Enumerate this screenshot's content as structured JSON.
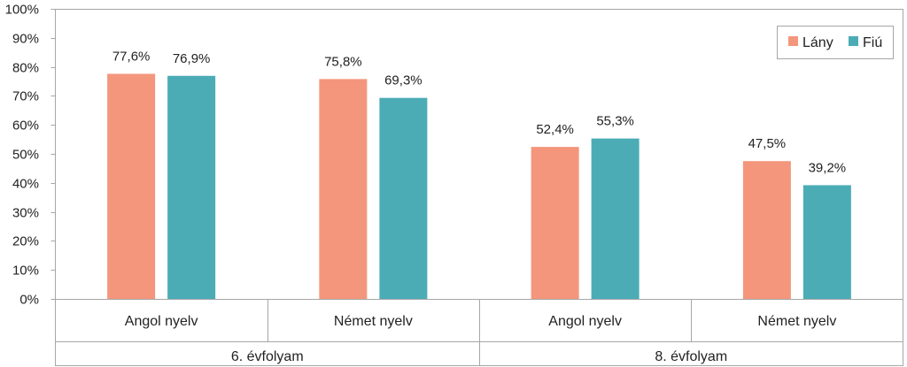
{
  "chart_data": {
    "type": "bar",
    "groups": [
      {
        "label": "6. évfolyam",
        "categories": [
          "Angol nyelv",
          "Német nyelv"
        ]
      },
      {
        "label": "8. évfolyam",
        "categories": [
          "Angol nyelv",
          "Német nyelv"
        ]
      }
    ],
    "categories": [
      "Angol nyelv",
      "Német nyelv",
      "Angol nyelv",
      "Német nyelv"
    ],
    "series": [
      {
        "name": "Lány",
        "color": "#f4967c",
        "values": [
          77.6,
          75.8,
          52.4,
          47.5
        ],
        "labels": [
          "77,6%",
          "75,8%",
          "52,4%",
          "47,5%"
        ]
      },
      {
        "name": "Fiú",
        "color": "#4bacb6",
        "values": [
          76.9,
          69.3,
          55.3,
          39.2
        ],
        "labels": [
          "76,9%",
          "69,3%",
          "55,3%",
          "39,2%"
        ]
      }
    ],
    "yticks": [
      "0%",
      "10%",
      "20%",
      "30%",
      "40%",
      "50%",
      "60%",
      "70%",
      "80%",
      "90%",
      "100%"
    ],
    "ylim": [
      0,
      100
    ],
    "grid": false,
    "legend": "top-right",
    "title": "",
    "xlabel": "",
    "ylabel": ""
  }
}
